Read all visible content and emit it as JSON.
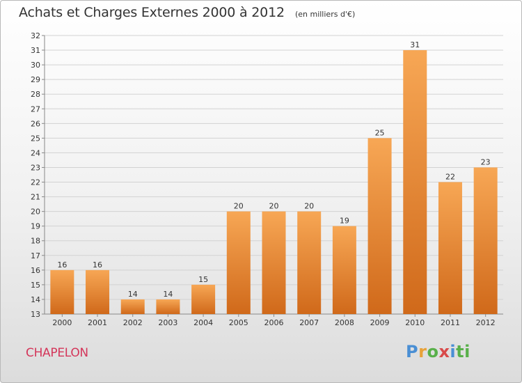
{
  "title": "Achats et Charges Externes 2000 à 2012",
  "unit_note": "(en milliers d'€)",
  "town": "CHAPELON",
  "logo": "Proxiti",
  "colors": {
    "bar_top": "#f7a755",
    "bar_bottom": "#d0691a",
    "grid": "#cfcfcf",
    "text": "#333333",
    "town": "#d4365a"
  },
  "chart_data": {
    "type": "bar",
    "categories": [
      "2000",
      "2001",
      "2002",
      "2003",
      "2004",
      "2005",
      "2006",
      "2007",
      "2008",
      "2009",
      "2010",
      "2011",
      "2012"
    ],
    "values": [
      16,
      16,
      14,
      14,
      15,
      20,
      20,
      20,
      19,
      25,
      31,
      22,
      23
    ],
    "ylim": [
      13,
      32
    ],
    "ytick_step": 1,
    "grid": true,
    "xlabel": "",
    "ylabel": ""
  }
}
